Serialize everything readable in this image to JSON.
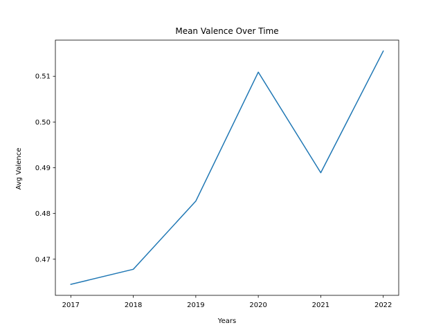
{
  "chart_data": {
    "type": "line",
    "title": "Mean Valence Over Time",
    "xlabel": "Years",
    "ylabel": "Avg Valence",
    "x": [
      "2017",
      "2018",
      "2019",
      "2020",
      "2021",
      "2022"
    ],
    "series": [
      {
        "values": [
          0.4645,
          0.4678,
          0.4827,
          0.5109,
          0.4889,
          0.5155
        ],
        "color": "#1f77b4"
      }
    ],
    "ylim": [
      0.4621,
      0.5179
    ],
    "yticks": [
      0.47,
      0.48,
      0.49,
      0.5,
      0.51
    ],
    "ytick_labels": [
      "0.47",
      "0.48",
      "0.49",
      "0.50",
      "0.51"
    ],
    "grid": false,
    "legend": "none"
  }
}
